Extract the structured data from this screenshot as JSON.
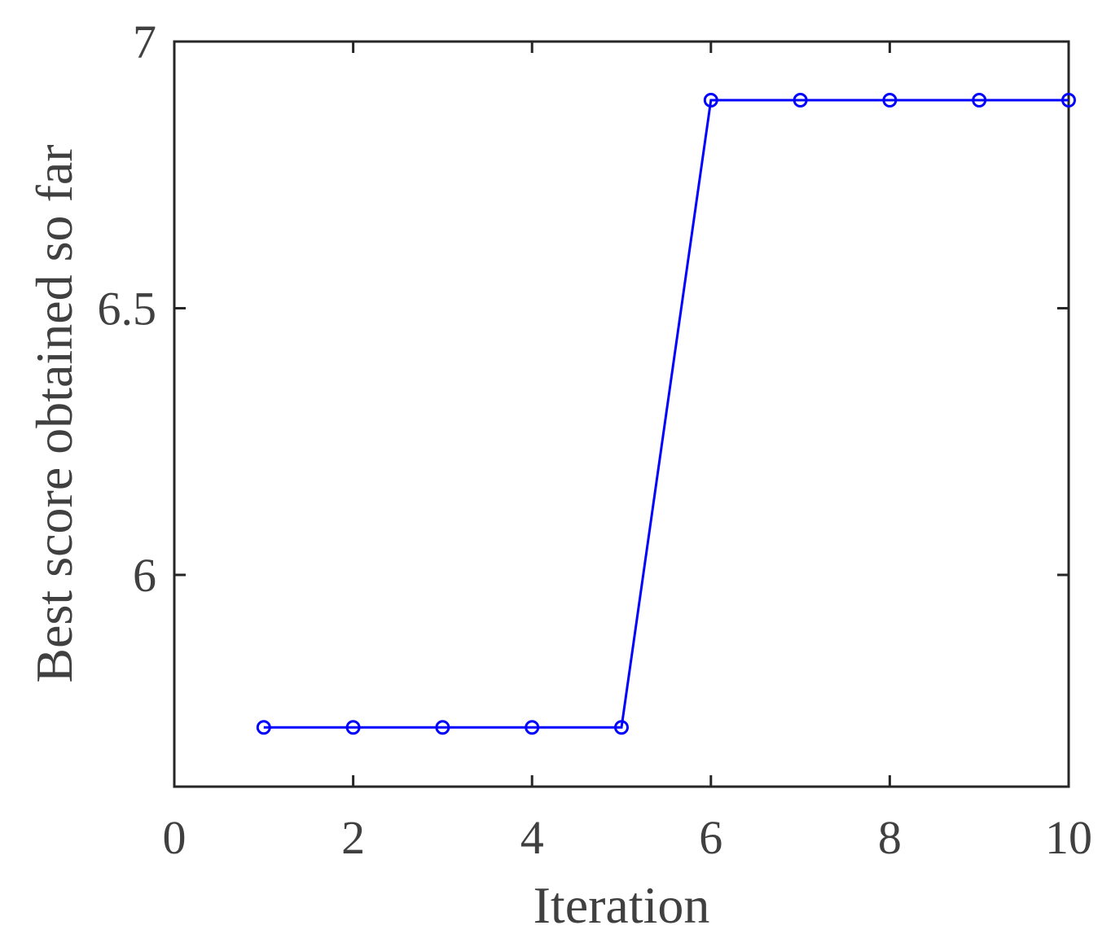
{
  "chart_data": {
    "type": "line",
    "xlabel": "Iteration",
    "ylabel": "Best score obtained so far",
    "x": [
      1,
      2,
      3,
      4,
      5,
      6,
      7,
      8,
      9,
      10
    ],
    "values": [
      5.714,
      5.714,
      5.714,
      5.714,
      5.714,
      6.89,
      6.89,
      6.89,
      6.89,
      6.89
    ],
    "color": "#0000ff",
    "xlim": [
      0,
      10
    ],
    "xticks": [
      0,
      2,
      4,
      6,
      8,
      10
    ],
    "ylim": [
      5.603,
      7
    ],
    "yticks": [
      6,
      6.5,
      7
    ]
  }
}
